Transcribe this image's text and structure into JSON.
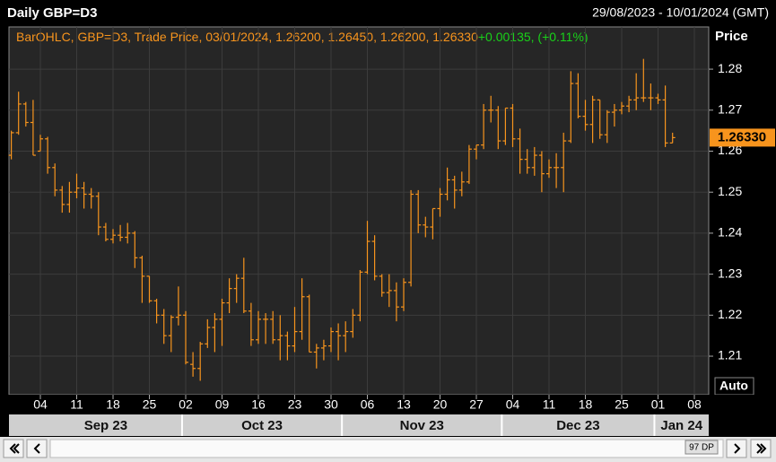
{
  "header": {
    "title": "Daily GBP=D3",
    "range": "29/08/2023 - 10/01/2024 (GMT)"
  },
  "legend": {
    "text": "BarOHLC, GBP=D3, Trade Price, 03/01/2024, 1.26200, 1.26450, 1.26200, 1.26330",
    "change": "+0.00135, (+0.11%)"
  },
  "controls": {
    "auto": "Auto",
    "points": "97 DP"
  },
  "chart_data": {
    "type": "ohlc",
    "y_label": "Price",
    "color": "#f7941d",
    "grid": true,
    "last_price": {
      "value": 1.2633,
      "label": "1.26330"
    },
    "ylim": [
      1.2006,
      1.2903
    ],
    "yticks": [
      1.21,
      1.22,
      1.23,
      1.24,
      1.25,
      1.26,
      1.27,
      1.28
    ],
    "xticks": [
      {
        "value": "2023-09-04",
        "label": "04"
      },
      {
        "value": "2023-09-11",
        "label": "11"
      },
      {
        "value": "2023-09-18",
        "label": "18"
      },
      {
        "value": "2023-09-25",
        "label": "25"
      },
      {
        "value": "2023-10-02",
        "label": "02"
      },
      {
        "value": "2023-10-09",
        "label": "09"
      },
      {
        "value": "2023-10-16",
        "label": "16"
      },
      {
        "value": "2023-10-23",
        "label": "23"
      },
      {
        "value": "2023-10-30",
        "label": "30"
      },
      {
        "value": "2023-11-06",
        "label": "06"
      },
      {
        "value": "2023-11-13",
        "label": "13"
      },
      {
        "value": "2023-11-20",
        "label": "20"
      },
      {
        "value": "2023-11-27",
        "label": "27"
      },
      {
        "value": "2023-12-04",
        "label": "04"
      },
      {
        "value": "2023-12-11",
        "label": "11"
      },
      {
        "value": "2023-12-18",
        "label": "18"
      },
      {
        "value": "2023-12-25",
        "label": "25"
      },
      {
        "value": "2024-01-01",
        "label": "01"
      },
      {
        "value": "2024-01-08",
        "label": "08"
      }
    ],
    "month_labels": [
      {
        "value": "2023-09-01",
        "label": "Sep 23"
      },
      {
        "value": "2023-10-01",
        "label": "Oct 23"
      },
      {
        "value": "2023-11-01",
        "label": "Nov 23"
      },
      {
        "value": "2023-12-01",
        "label": "Dec 23"
      },
      {
        "value": "2024-01-01",
        "label": "Jan 24"
      }
    ],
    "x": [
      "2023-08-29",
      "2023-08-30",
      "2023-08-31",
      "2023-09-01",
      "2023-09-04",
      "2023-09-05",
      "2023-09-06",
      "2023-09-07",
      "2023-09-08",
      "2023-09-11",
      "2023-09-12",
      "2023-09-13",
      "2023-09-14",
      "2023-09-15",
      "2023-09-18",
      "2023-09-19",
      "2023-09-20",
      "2023-09-21",
      "2023-09-22",
      "2023-09-25",
      "2023-09-26",
      "2023-09-27",
      "2023-09-28",
      "2023-09-29",
      "2023-10-02",
      "2023-10-03",
      "2023-10-04",
      "2023-10-05",
      "2023-10-06",
      "2023-10-09",
      "2023-10-10",
      "2023-10-11",
      "2023-10-12",
      "2023-10-13",
      "2023-10-16",
      "2023-10-17",
      "2023-10-18",
      "2023-10-19",
      "2023-10-20",
      "2023-10-23",
      "2023-10-24",
      "2023-10-25",
      "2023-10-26",
      "2023-10-27",
      "2023-10-30",
      "2023-10-31",
      "2023-11-01",
      "2023-11-02",
      "2023-11-03",
      "2023-11-06",
      "2023-11-07",
      "2023-11-08",
      "2023-11-09",
      "2023-11-10",
      "2023-11-13",
      "2023-11-14",
      "2023-11-15",
      "2023-11-16",
      "2023-11-17",
      "2023-11-20",
      "2023-11-21",
      "2023-11-22",
      "2023-11-23",
      "2023-11-24",
      "2023-11-27",
      "2023-11-28",
      "2023-11-29",
      "2023-11-30",
      "2023-12-01",
      "2023-12-04",
      "2023-12-05",
      "2023-12-06",
      "2023-12-07",
      "2023-12-08",
      "2023-12-11",
      "2023-12-12",
      "2023-12-13",
      "2023-12-14",
      "2023-12-15",
      "2023-12-18",
      "2023-12-19",
      "2023-12-20",
      "2023-12-21",
      "2023-12-22",
      "2023-12-25",
      "2023-12-26",
      "2023-12-27",
      "2023-12-28",
      "2023-12-29",
      "2024-01-01",
      "2024-01-02",
      "2024-01-03"
    ],
    "open": [
      1.259,
      1.2645,
      1.2715,
      1.267,
      1.26,
      1.263,
      1.256,
      1.2505,
      1.247,
      1.25,
      1.251,
      1.2495,
      1.249,
      1.2415,
      1.2385,
      1.2395,
      1.239,
      1.24,
      1.234,
      1.2295,
      1.2235,
      1.22,
      1.215,
      1.2195,
      1.22,
      1.208,
      1.207,
      1.213,
      1.217,
      1.219,
      1.223,
      1.2265,
      1.229,
      1.221,
      1.214,
      1.219,
      1.219,
      1.214,
      1.215,
      1.2125,
      1.216,
      1.2245,
      1.211,
      1.212,
      1.2125,
      1.216,
      1.215,
      1.216,
      1.22,
      1.2305,
      1.238,
      1.2295,
      1.2255,
      1.226,
      1.222,
      1.228,
      1.2495,
      1.242,
      1.2415,
      1.246,
      1.2495,
      1.253,
      1.2505,
      1.2525,
      1.2605,
      1.2615,
      1.27,
      1.27,
      1.2625,
      1.2705,
      1.263,
      1.258,
      1.256,
      1.259,
      1.2545,
      1.256,
      1.256,
      1.2625,
      1.2765,
      1.2685,
      1.2665,
      1.2725,
      1.264,
      1.2695,
      1.27,
      1.271,
      1.2725,
      1.273,
      1.273,
      1.273,
      1.2725,
      1.262
    ],
    "high": [
      1.265,
      1.2745,
      1.272,
      1.2725,
      1.264,
      1.2635,
      1.257,
      1.2515,
      1.2525,
      1.2545,
      1.2525,
      1.251,
      1.25,
      1.2425,
      1.241,
      1.242,
      1.2425,
      1.2405,
      1.2345,
      1.2295,
      1.224,
      1.2215,
      1.22,
      1.227,
      1.221,
      1.211,
      1.2135,
      1.219,
      1.2205,
      1.224,
      1.229,
      1.23,
      1.234,
      1.223,
      1.221,
      1.2205,
      1.221,
      1.22,
      1.216,
      1.222,
      1.229,
      1.225,
      1.213,
      1.214,
      1.217,
      1.218,
      1.2185,
      1.2215,
      1.231,
      1.243,
      1.2395,
      1.23,
      1.23,
      1.228,
      1.229,
      1.2505,
      1.2505,
      1.244,
      1.246,
      1.251,
      1.256,
      1.254,
      1.255,
      1.2615,
      1.2615,
      1.2715,
      1.2735,
      1.271,
      1.2705,
      1.2715,
      1.2655,
      1.2605,
      1.261,
      1.26,
      1.258,
      1.2595,
      1.2645,
      1.2795,
      1.279,
      1.2725,
      1.2735,
      1.2725,
      1.27,
      1.2715,
      1.272,
      1.2735,
      1.279,
      1.2825,
      1.2765,
      1.274,
      1.276,
      1.2645
    ],
    "low": [
      1.258,
      1.264,
      1.266,
      1.259,
      1.26,
      1.2545,
      1.249,
      1.245,
      1.245,
      1.2485,
      1.246,
      1.246,
      1.2395,
      1.238,
      1.2375,
      1.238,
      1.2375,
      1.2315,
      1.223,
      1.223,
      1.218,
      1.213,
      1.211,
      1.2175,
      1.208,
      1.205,
      1.204,
      1.212,
      1.211,
      1.2125,
      1.2205,
      1.223,
      1.2205,
      1.2125,
      1.213,
      1.213,
      1.213,
      1.209,
      1.209,
      1.211,
      1.214,
      1.211,
      1.207,
      1.209,
      1.211,
      1.209,
      1.211,
      1.2145,
      1.2185,
      1.23,
      1.2285,
      1.2245,
      1.222,
      1.2185,
      1.221,
      1.227,
      1.24,
      1.239,
      1.2385,
      1.244,
      1.248,
      1.246,
      1.249,
      1.252,
      1.258,
      1.2605,
      1.267,
      1.2605,
      1.2615,
      1.261,
      1.2545,
      1.2545,
      1.254,
      1.25,
      1.2535,
      1.251,
      1.25,
      1.262,
      1.268,
      1.265,
      1.262,
      1.263,
      1.262,
      1.266,
      1.269,
      1.2695,
      1.27,
      1.272,
      1.27,
      1.2715,
      1.261,
      1.262
    ],
    "close": [
      1.2645,
      1.2715,
      1.267,
      1.259,
      1.263,
      1.256,
      1.2505,
      1.247,
      1.25,
      1.251,
      1.2495,
      1.249,
      1.2415,
      1.2385,
      1.2395,
      1.239,
      1.24,
      1.234,
      1.2295,
      1.2235,
      1.22,
      1.215,
      1.2195,
      1.22,
      1.2085,
      1.207,
      1.213,
      1.217,
      1.219,
      1.223,
      1.2265,
      1.229,
      1.221,
      1.214,
      1.219,
      1.219,
      1.214,
      1.215,
      1.2125,
      1.216,
      1.2245,
      1.211,
      1.212,
      1.2125,
      1.216,
      1.215,
      1.216,
      1.22,
      1.2305,
      1.238,
      1.2295,
      1.2255,
      1.226,
      1.222,
      1.228,
      1.2495,
      1.242,
      1.2415,
      1.246,
      1.2495,
      1.253,
      1.2505,
      1.2525,
      1.2605,
      1.2615,
      1.27,
      1.27,
      1.2625,
      1.2705,
      1.263,
      1.258,
      1.256,
      1.259,
      1.2545,
      1.256,
      1.256,
      1.2625,
      1.2765,
      1.2685,
      1.2665,
      1.2725,
      1.264,
      1.2695,
      1.27,
      1.271,
      1.2725,
      1.273,
      1.273,
      1.273,
      1.2725,
      1.262,
      1.2633
    ]
  }
}
